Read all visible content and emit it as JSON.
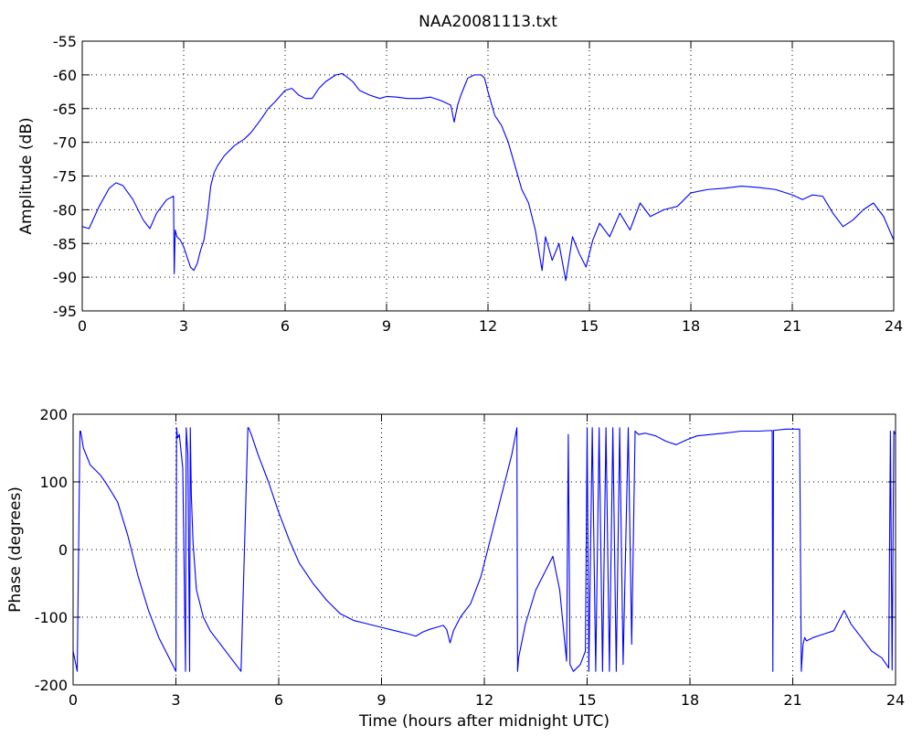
{
  "title": "NAA20081113.txt",
  "colors": {
    "series": "#0000ff",
    "grid": "#000000",
    "background": "#ffffff"
  },
  "chart_data": [
    {
      "type": "line",
      "title": "NAA20081113.txt",
      "xlabel": "",
      "ylabel": "Amplitude (dB)",
      "xlim": [
        0,
        24
      ],
      "ylim": [
        -95,
        -55
      ],
      "xticks": [
        0,
        3,
        6,
        9,
        12,
        15,
        18,
        21,
        24
      ],
      "yticks": [
        -95,
        -90,
        -85,
        -80,
        -75,
        -70,
        -65,
        -60,
        -55
      ],
      "grid": true,
      "series": [
        {
          "color": "#0000ff",
          "x": [
            0,
            0.2,
            0.5,
            0.8,
            1.0,
            1.2,
            1.5,
            1.8,
            2.0,
            2.2,
            2.5,
            2.7,
            2.72,
            2.75,
            2.8,
            2.9,
            3.0,
            3.1,
            3.2,
            3.3,
            3.4,
            3.5,
            3.6,
            3.7,
            3.8,
            3.9,
            4.0,
            4.2,
            4.5,
            4.8,
            5.0,
            5.3,
            5.5,
            5.7,
            6.0,
            6.2,
            6.4,
            6.6,
            6.8,
            7.0,
            7.2,
            7.5,
            7.7,
            8.0,
            8.2,
            8.5,
            8.8,
            9.0,
            9.3,
            9.6,
            10.0,
            10.3,
            10.6,
            10.9,
            11.0,
            11.1,
            11.2,
            11.4,
            11.6,
            11.8,
            11.9,
            12.0,
            12.2,
            12.4,
            12.6,
            12.8,
            13.0,
            13.2,
            13.4,
            13.6,
            13.7,
            13.9,
            14.1,
            14.3,
            14.5,
            14.7,
            14.9,
            15.1,
            15.3,
            15.6,
            15.9,
            16.2,
            16.5,
            16.8,
            17.2,
            17.6,
            18.0,
            18.5,
            19.0,
            19.5,
            20.0,
            20.5,
            21.0,
            21.3,
            21.6,
            21.9,
            22.2,
            22.5,
            22.8,
            23.1,
            23.4,
            23.7,
            24.0
          ],
          "values": [
            -82.5,
            -82.8,
            -79.5,
            -76.8,
            -76.0,
            -76.4,
            -78.5,
            -81.5,
            -82.8,
            -80.5,
            -78.5,
            -78.0,
            -89.5,
            -83.0,
            -84.0,
            -84.5,
            -85.5,
            -87.0,
            -88.5,
            -89.0,
            -88.0,
            -86.0,
            -84.5,
            -81.0,
            -76.5,
            -74.5,
            -73.5,
            -72.0,
            -70.5,
            -69.5,
            -68.5,
            -66.5,
            -65.0,
            -64.0,
            -62.3,
            -62.0,
            -63.0,
            -63.5,
            -63.5,
            -62.0,
            -61.0,
            -60.0,
            -59.8,
            -61.0,
            -62.3,
            -63.0,
            -63.5,
            -63.2,
            -63.3,
            -63.5,
            -63.5,
            -63.3,
            -63.8,
            -64.5,
            -67.0,
            -64.5,
            -63.0,
            -60.5,
            -60.0,
            -60.0,
            -60.5,
            -62.5,
            -66.0,
            -67.5,
            -70.0,
            -73.5,
            -77.0,
            -79.0,
            -83.0,
            -89.0,
            -84.0,
            -87.5,
            -85.0,
            -90.5,
            -84.0,
            -86.5,
            -88.5,
            -84.5,
            -82.0,
            -84.0,
            -80.5,
            -83.0,
            -79.0,
            -81.0,
            -80.0,
            -79.5,
            -77.5,
            -77.0,
            -76.8,
            -76.5,
            -76.7,
            -77.0,
            -77.8,
            -78.5,
            -77.8,
            -78.0,
            -80.5,
            -82.5,
            -81.5,
            -80.0,
            -79.0,
            -81.0,
            -84.5
          ]
        }
      ]
    },
    {
      "type": "line",
      "title": "",
      "xlabel": "Time (hours after midnight UTC)",
      "ylabel": "Phase (degrees)",
      "xlim": [
        0,
        24
      ],
      "ylim": [
        -200,
        200
      ],
      "xticks": [
        0,
        3,
        6,
        9,
        12,
        15,
        18,
        21,
        24
      ],
      "yticks": [
        -200,
        -100,
        0,
        100,
        200
      ],
      "grid": true,
      "series": [
        {
          "color": "#0000ff",
          "x": [
            0,
            0.12,
            0.2,
            0.22,
            0.3,
            0.5,
            0.8,
            1.0,
            1.3,
            1.6,
            1.9,
            2.2,
            2.5,
            2.8,
            3.0,
            3.02,
            3.05,
            3.1,
            3.2,
            3.28,
            3.3,
            3.35,
            3.4,
            3.42,
            3.45,
            3.5,
            3.6,
            3.8,
            4.0,
            4.3,
            4.6,
            4.9,
            5.1,
            5.12,
            5.2,
            5.4,
            5.7,
            6.0,
            6.3,
            6.6,
            7.0,
            7.4,
            7.8,
            8.2,
            8.6,
            9.0,
            9.4,
            9.8,
            10.0,
            10.2,
            10.4,
            10.6,
            10.8,
            10.9,
            11.0,
            11.1,
            11.3,
            11.6,
            11.9,
            12.2,
            12.5,
            12.8,
            12.95,
            12.97,
            13.0,
            13.2,
            13.5,
            13.8,
            14.0,
            14.2,
            14.4,
            14.45,
            14.5,
            14.6,
            14.8,
            14.95,
            15.0,
            15.05,
            15.15,
            15.25,
            15.35,
            15.45,
            15.55,
            15.65,
            15.75,
            15.85,
            15.95,
            16.05,
            16.2,
            16.3,
            16.4,
            16.5,
            16.7,
            17.0,
            17.3,
            17.6,
            17.9,
            18.2,
            18.6,
            19.0,
            19.5,
            20.0,
            20.4,
            20.42,
            20.44,
            20.8,
            21.2,
            21.25,
            21.3,
            21.35,
            21.4,
            21.6,
            21.9,
            22.2,
            22.5,
            22.7,
            23.0,
            23.3,
            23.6,
            23.8,
            23.85,
            23.9,
            23.95,
            24.0
          ],
          "values": [
            -150,
            -180,
            175,
            175,
            150,
            125,
            110,
            95,
            70,
            20,
            -40,
            -90,
            -130,
            -160,
            -180,
            180,
            165,
            170,
            120,
            -180,
            180,
            140,
            -180,
            180,
            80,
            10,
            -60,
            -100,
            -120,
            -140,
            -160,
            -180,
            180,
            180,
            170,
            140,
            100,
            55,
            15,
            -20,
            -50,
            -75,
            -95,
            -105,
            -110,
            -115,
            -120,
            -125,
            -128,
            -122,
            -118,
            -115,
            -112,
            -118,
            -138,
            -120,
            -100,
            -80,
            -40,
            20,
            80,
            140,
            180,
            -180,
            -160,
            -110,
            -60,
            -30,
            -10,
            -60,
            -165,
            170,
            -170,
            -180,
            -170,
            -150,
            180,
            -180,
            180,
            -180,
            180,
            -180,
            180,
            -180,
            180,
            -180,
            180,
            -170,
            180,
            -140,
            175,
            170,
            172,
            168,
            160,
            155,
            162,
            168,
            170,
            172,
            175,
            175,
            176,
            -180,
            176,
            178,
            178,
            -180,
            -140,
            -130,
            -135,
            -130,
            -125,
            -120,
            -90,
            -110,
            -130,
            -150,
            -160,
            -175,
            175,
            -178,
            175,
            170
          ]
        }
      ]
    }
  ]
}
